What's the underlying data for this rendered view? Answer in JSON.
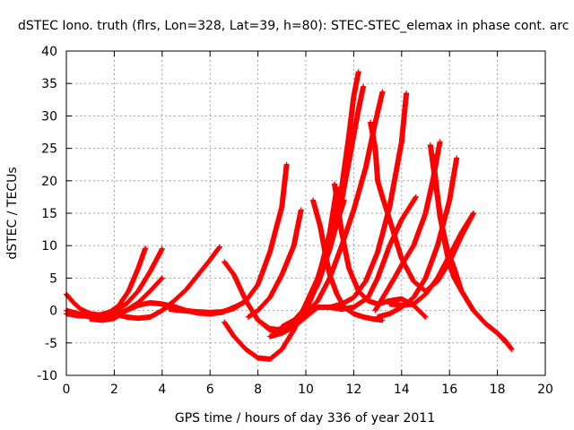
{
  "chart_data": {
    "type": "scatter",
    "title": "dSTEC Iono. truth (flrs, Lon=328, Lat=39, h=80): STEC-STEC_elemax in phase cont. arc",
    "xlabel": "GPS time / hours of day 336 of year 2011",
    "ylabel": "dSTEC  / TECUs",
    "xlim": [
      0,
      20
    ],
    "ylim": [
      -10,
      40
    ],
    "xticks": [
      0,
      2,
      4,
      6,
      8,
      10,
      12,
      14,
      16,
      18,
      20
    ],
    "yticks": [
      -10,
      -5,
      0,
      5,
      10,
      15,
      20,
      25,
      30,
      35,
      40
    ],
    "grid": true,
    "marker": "+",
    "color": "#ff0000",
    "series": [
      {
        "x": [
          0.0,
          0.3,
          0.6,
          1.0,
          1.4,
          1.8,
          2.2,
          2.6,
          3.0,
          3.3
        ],
        "y": [
          2.5,
          1.2,
          0.2,
          -0.5,
          -0.7,
          -0.3,
          0.8,
          3.0,
          6.5,
          9.6
        ]
      },
      {
        "x": [
          0.0,
          0.5,
          1.0,
          1.5,
          2.0,
          2.5,
          3.0,
          3.5,
          4.0
        ],
        "y": [
          -0.5,
          -0.8,
          -0.9,
          -0.6,
          0.0,
          1.0,
          3.0,
          6.0,
          9.5
        ]
      },
      {
        "x": [
          0.0,
          0.5,
          1.0,
          1.5,
          2.0,
          2.5,
          3.0,
          3.5,
          4.0
        ],
        "y": [
          0.0,
          -0.5,
          -0.9,
          -1.0,
          -0.6,
          0.0,
          1.2,
          3.0,
          5.0
        ]
      },
      {
        "x": [
          1.0,
          1.5,
          2.0,
          2.5,
          3.0,
          3.5,
          4.0,
          4.5,
          5.0,
          5.5,
          6.0,
          6.5,
          7.0,
          7.4
        ],
        "y": [
          -1.3,
          -1.5,
          -1.2,
          0.0,
          0.8,
          1.2,
          1.0,
          0.6,
          0.0,
          -0.4,
          -0.5,
          -0.3,
          0.5,
          1.2
        ]
      },
      {
        "x": [
          2.0,
          2.5,
          3.0,
          3.5,
          4.0,
          4.5,
          5.0,
          5.5,
          6.0,
          6.4
        ],
        "y": [
          -0.5,
          -1.0,
          -1.2,
          -1.0,
          0.0,
          1.5,
          3.2,
          5.5,
          7.8,
          9.8
        ]
      },
      {
        "x": [
          4.3,
          4.8,
          5.5,
          6.0,
          6.5,
          7.0,
          7.5,
          8.0,
          8.5,
          9.0,
          9.2
        ],
        "y": [
          0.2,
          0.0,
          -0.2,
          -0.3,
          -0.2,
          0.3,
          1.5,
          4.0,
          9.0,
          16.0,
          22.5
        ]
      },
      {
        "x": [
          6.6,
          7.0,
          7.5,
          8.0,
          8.5,
          9.0,
          9.5,
          10.0,
          10.3,
          10.6,
          11.0,
          11.3
        ],
        "y": [
          7.5,
          5.5,
          1.5,
          -1.5,
          -2.8,
          -3.0,
          -2.0,
          0.0,
          2.5,
          6.0,
          12.0,
          19.0
        ]
      },
      {
        "x": [
          6.6,
          7.0,
          7.5,
          8.0,
          8.5,
          9.0,
          9.5,
          10.0,
          10.5,
          11.0,
          11.3,
          11.6
        ],
        "y": [
          -1.8,
          -4.0,
          -6.0,
          -7.3,
          -7.5,
          -6.0,
          -3.0,
          1.0,
          5.0,
          9.5,
          13.5,
          17.0
        ]
      },
      {
        "x": [
          7.6,
          8.0,
          8.5,
          9.0,
          9.5,
          9.8
        ],
        "y": [
          -1.0,
          0.0,
          2.0,
          5.5,
          10.0,
          15.5
        ]
      },
      {
        "x": [
          8.0,
          8.5,
          9.0,
          9.5,
          10.0,
          10.5,
          11.0,
          11.5,
          12.0,
          12.6,
          13.0,
          13.5,
          14.0,
          14.6
        ],
        "y": [
          -1.5,
          -3.0,
          -3.5,
          -2.5,
          -1.0,
          0.5,
          0.5,
          0.2,
          0.5,
          2.0,
          5.0,
          10.0,
          14.0,
          17.5
        ]
      },
      {
        "x": [
          8.5,
          9.0,
          9.5,
          10.0,
          10.5,
          11.0,
          11.5,
          11.8,
          12.0,
          12.2
        ],
        "y": [
          -4.0,
          -3.5,
          -2.0,
          0.5,
          5.0,
          11.0,
          19.0,
          27.0,
          33.0,
          36.8
        ]
      },
      {
        "x": [
          9.0,
          9.5,
          10.0,
          10.5,
          11.0,
          11.5,
          11.9,
          12.2,
          12.4
        ],
        "y": [
          -2.5,
          -1.5,
          0.5,
          4.0,
          9.5,
          17.0,
          25.0,
          31.0,
          34.5
        ]
      },
      {
        "x": [
          9.5,
          10.0,
          10.5,
          11.0,
          11.5,
          12.0,
          12.5,
          12.9,
          13.2
        ],
        "y": [
          -1.5,
          -0.5,
          1.5,
          5.0,
          10.0,
          15.5,
          22.0,
          29.0,
          33.7
        ]
      },
      {
        "x": [
          10.3,
          10.6,
          10.8,
          11.0,
          11.3,
          11.6,
          12.0,
          12.4,
          12.8,
          13.2
        ],
        "y": [
          17.0,
          13.0,
          9.0,
          5.5,
          2.5,
          0.5,
          -0.5,
          -1.0,
          -1.3,
          -1.5
        ]
      },
      {
        "x": [
          11.0,
          11.5,
          12.0,
          12.5,
          13.0,
          13.5,
          14.0,
          14.2
        ],
        "y": [
          0.5,
          1.0,
          2.0,
          4.5,
          9.0,
          16.0,
          26.0,
          33.5
        ]
      },
      {
        "x": [
          11.2,
          11.5,
          11.8,
          12.2,
          12.6,
          13.0,
          13.5,
          14.0,
          14.5,
          15.0
        ],
        "y": [
          19.5,
          12.0,
          6.5,
          3.0,
          1.5,
          1.0,
          1.5,
          1.8,
          0.8,
          -1.0
        ]
      },
      {
        "x": [
          12.7,
          12.9,
          13.0,
          13.2,
          13.5,
          14.0,
          14.5,
          15.0,
          15.5,
          16.0,
          16.5,
          17.0
        ],
        "y": [
          29.0,
          25.0,
          20.0,
          17.5,
          14.0,
          8.0,
          4.5,
          3.0,
          4.5,
          7.5,
          11.5,
          15.0
        ]
      },
      {
        "x": [
          12.9,
          13.3,
          13.7,
          14.0,
          14.5,
          15.0,
          15.3,
          15.6
        ],
        "y": [
          0.0,
          2.5,
          5.0,
          7.0,
          10.0,
          15.0,
          20.0,
          26.0
        ]
      },
      {
        "x": [
          13.0,
          13.5,
          14.0,
          14.5,
          15.0,
          15.5,
          16.0,
          16.3
        ],
        "y": [
          -1.0,
          -0.5,
          0.5,
          2.0,
          5.0,
          10.0,
          17.0,
          23.5
        ]
      },
      {
        "x": [
          15.2,
          15.4,
          15.6,
          15.8,
          16.0,
          16.2,
          16.5,
          17.0,
          17.5,
          18.0,
          18.3,
          18.6
        ],
        "y": [
          25.5,
          20.0,
          15.0,
          10.5,
          7.0,
          5.0,
          3.0,
          0.0,
          -2.0,
          -3.5,
          -4.5,
          -6.0
        ]
      },
      {
        "x": [
          15.3,
          15.6,
          15.9,
          16.2,
          16.5,
          17.0,
          17.5,
          18.0,
          18.5
        ],
        "y": [
          24.0,
          14.5,
          9.5,
          6.5,
          3.0,
          0.0,
          -2.0,
          -3.5,
          -5.5
        ]
      },
      {
        "x": [
          13.5,
          14.0,
          14.5,
          15.0,
          15.5,
          16.0,
          16.5,
          17.0
        ],
        "y": [
          1.0,
          0.8,
          1.0,
          2.5,
          5.0,
          8.5,
          12.0,
          15.0
        ]
      }
    ]
  }
}
